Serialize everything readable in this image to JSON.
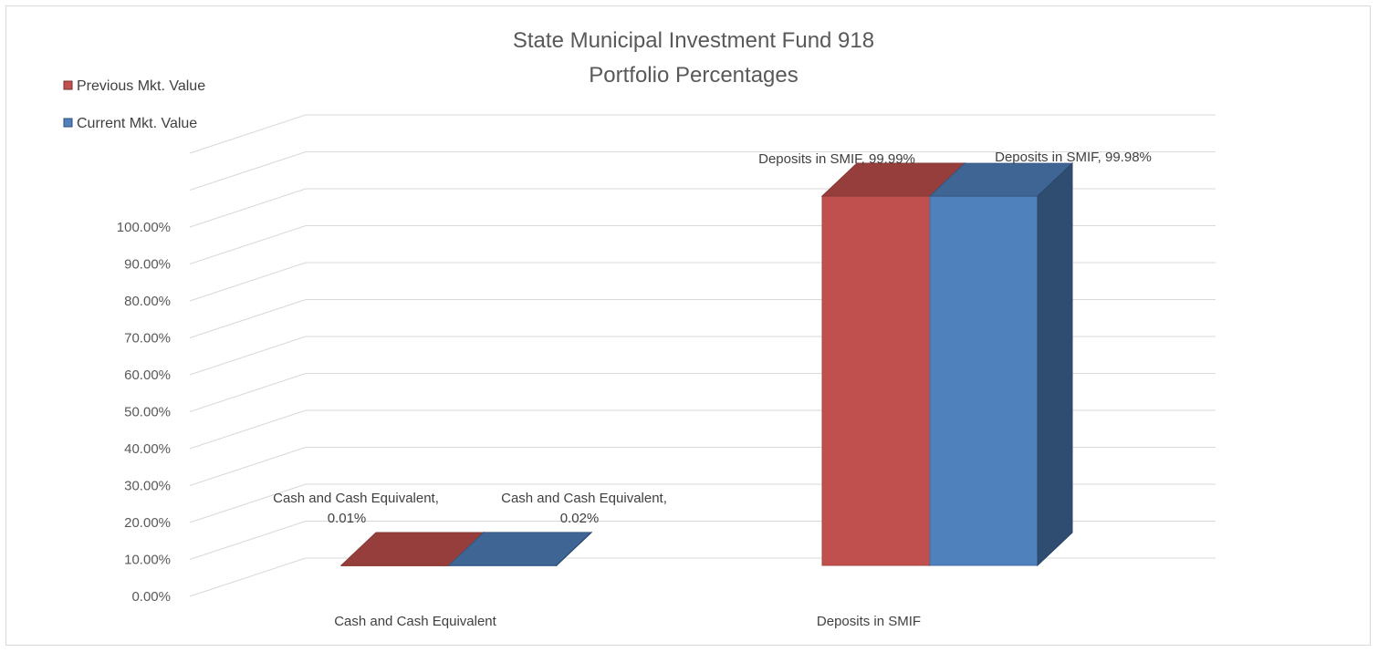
{
  "chart_data": {
    "type": "bar",
    "title": "State Municipal Investment Fund 918",
    "subtitle": "Portfolio Percentages",
    "categories": [
      "Cash and Cash Equivalent",
      "Deposits in SMIF"
    ],
    "series": [
      {
        "name": "Previous Mkt. Value",
        "color": "#c0504d",
        "values": [
          0.01,
          99.99
        ],
        "labels": [
          [
            "Cash and Cash Equivalent,",
            "0.01%"
          ],
          [
            "Deposits in SMIF, 99.99%"
          ]
        ]
      },
      {
        "name": "Current Mkt. Value",
        "color": "#4f81bd",
        "values": [
          0.02,
          99.98
        ],
        "labels": [
          [
            "Cash and Cash Equivalent,",
            "0.02%"
          ],
          [
            "Deposits in SMIF, 99.98%"
          ]
        ]
      }
    ],
    "y_ticks": [
      "0.00%",
      "10.00%",
      "20.00%",
      "30.00%",
      "40.00%",
      "50.00%",
      "60.00%",
      "70.00%",
      "80.00%",
      "90.00%",
      "100.00%"
    ],
    "ylim": [
      0,
      100
    ],
    "grid": true,
    "legend_position": "top-left",
    "style": "3d-column"
  }
}
